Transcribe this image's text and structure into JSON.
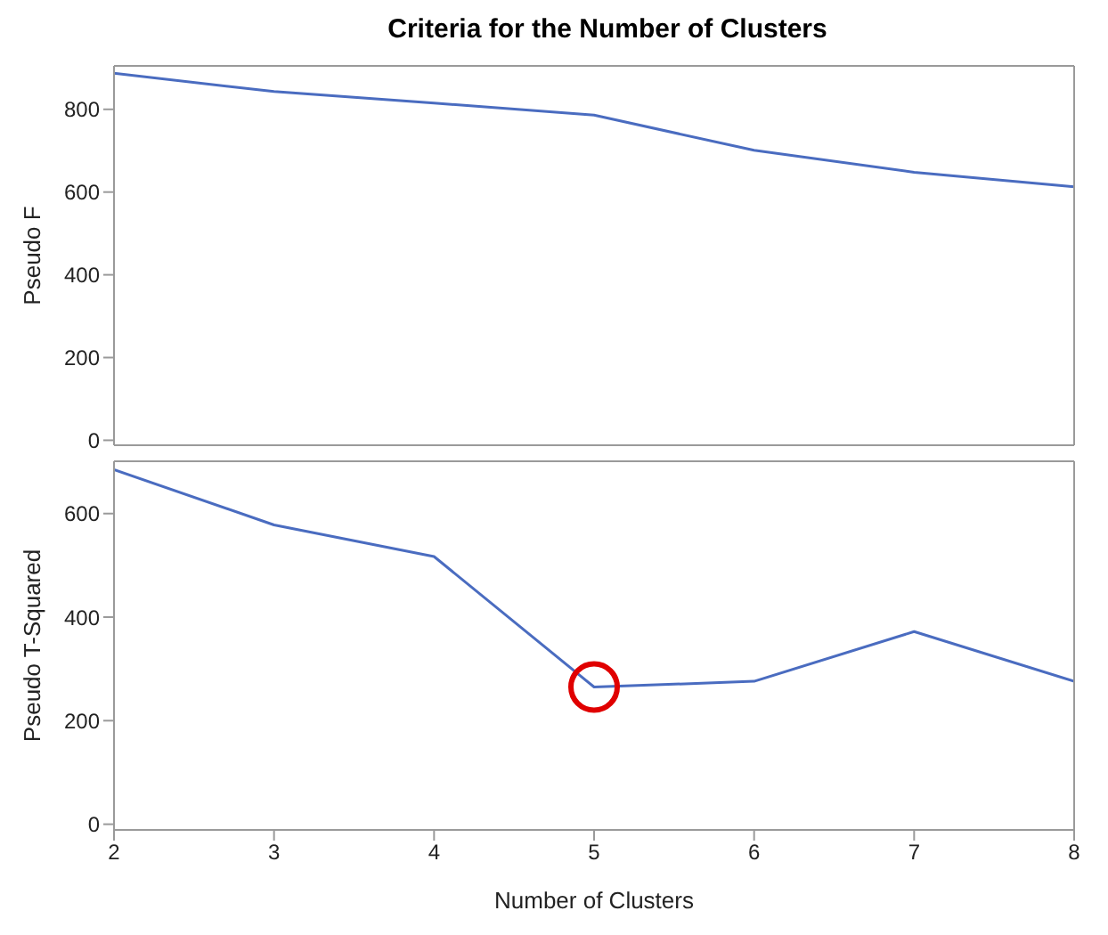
{
  "chart_data": [
    {
      "type": "line",
      "title": "Criteria for the Number of Clusters",
      "ylabel": "Pseudo F",
      "x": [
        2,
        3,
        4,
        5,
        6,
        7,
        8
      ],
      "series": [
        {
          "color": "#4a6cc0",
          "values": [
            887,
            843,
            815,
            786,
            701,
            648,
            613
          ]
        }
      ],
      "xlim": [
        2,
        8
      ],
      "xticks": [
        2,
        3,
        4,
        5,
        6,
        7,
        8
      ],
      "ylim": [
        -12,
        905
      ],
      "yticks": [
        0,
        200,
        400,
        600,
        800
      ],
      "tick_labels": "y",
      "grid": false,
      "legend": false,
      "marker": "none",
      "line_style": "solid"
    },
    {
      "type": "line",
      "xlabel": "Number of Clusters",
      "ylabel": "Pseudo T-Squared",
      "x": [
        2,
        3,
        4,
        5,
        6,
        7,
        8
      ],
      "series": [
        {
          "color": "#4a6cc0",
          "values": [
            685,
            578,
            517,
            265,
            276,
            372,
            276
          ]
        }
      ],
      "xlim": [
        2,
        8
      ],
      "xticks": [
        2,
        3,
        4,
        5,
        6,
        7,
        8
      ],
      "ylim": [
        -11,
        701
      ],
      "yticks": [
        0,
        200,
        400,
        600
      ],
      "grid": false,
      "legend": false,
      "marker": "none",
      "line_style": "solid"
    }
  ]
}
